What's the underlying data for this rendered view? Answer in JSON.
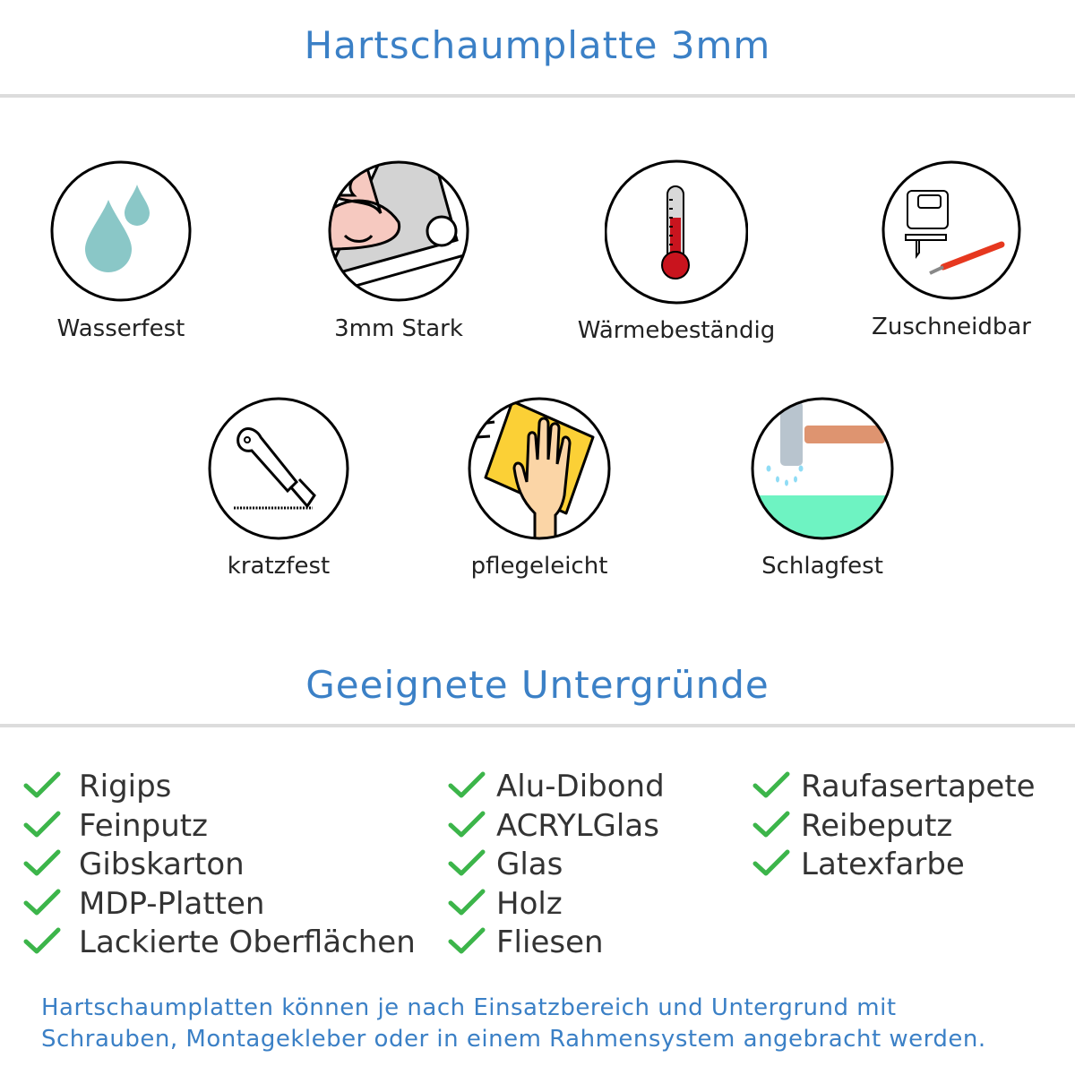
{
  "header": {
    "title": "Hartschaumplatte 3mm"
  },
  "features": [
    {
      "label": "Wasserfest",
      "icon": "water-drops-icon"
    },
    {
      "label": "3mm Stark",
      "icon": "strong-arm-icon"
    },
    {
      "label": "Wärmebeständig",
      "icon": "thermometer-icon"
    },
    {
      "label": "Zuschneidbar",
      "icon": "jigsaw-cutter-icon"
    },
    {
      "label": "kratzfest",
      "icon": "cutter-knife-icon"
    },
    {
      "label": "pflegeleicht",
      "icon": "cleaning-hand-icon"
    },
    {
      "label": "Schlagfest",
      "icon": "hammer-icon"
    }
  ],
  "surfaces": {
    "title": "Geeignete Untergründe",
    "columns": [
      [
        "Rigips",
        "Feinputz",
        "Gibskarton",
        "MDP-Platten",
        "Lackierte Oberflächen"
      ],
      [
        "Alu-Dibond",
        "ACRYLGlas",
        "Glas",
        "Holz",
        "Fliesen"
      ],
      [
        "Raufasertapete",
        "Reibeputz",
        "Latexfarbe"
      ]
    ]
  },
  "footer": {
    "line1": "Hartschaumplatten können je nach Einsatzbereich und Untergrund mit",
    "line2": "Schrauben, Montagekleber oder in einem Rahmensystem angebracht werden."
  },
  "colors": {
    "accent": "#3b80c6",
    "check": "#3cb54a",
    "divider": "#dcdcdc"
  }
}
